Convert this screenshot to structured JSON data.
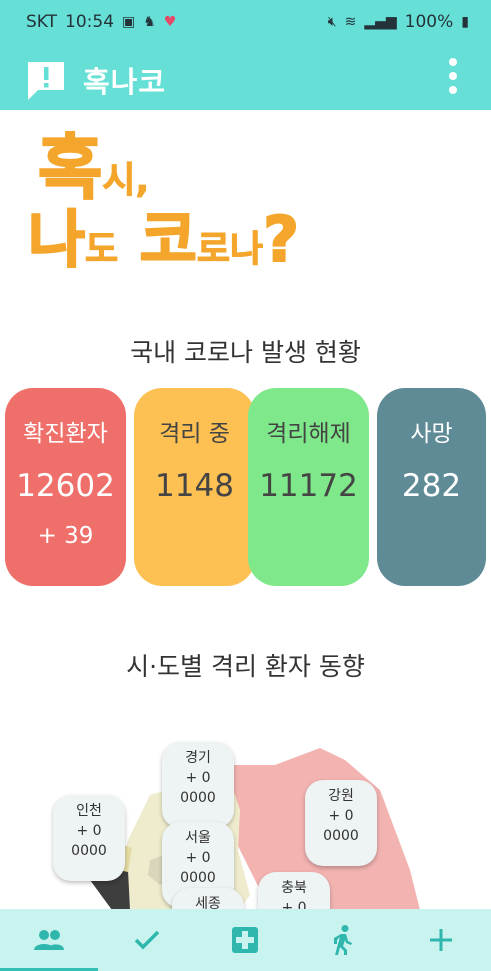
{
  "status": {
    "carrier": "SKT",
    "time": "10:54",
    "battery": "100%"
  },
  "app": {
    "title": "혹나코"
  },
  "hero": {
    "line1_big": "혹",
    "line1_small": "시,",
    "line2_big1": "나",
    "line2_small1": "도",
    "line2_big2": "코",
    "line2_small2": "로나",
    "line2_q": "?"
  },
  "domestic": {
    "title": "국내 코로나 발생 현황",
    "cards": [
      {
        "label": "확진환자",
        "value": "12602",
        "delta": "+ 39",
        "color": "#ef6f6a"
      },
      {
        "label": "격리 중",
        "value": "1148",
        "color": "#fdc052"
      },
      {
        "label": "격리해제",
        "value": "11172",
        "color": "#7ee88a"
      },
      {
        "label": "사망",
        "value": "282",
        "color": "#5e8b96"
      }
    ]
  },
  "regional": {
    "title": "시·도별 격리 환자 동향",
    "regions": [
      {
        "name": "경기",
        "delta": "+ 0",
        "count": "0000"
      },
      {
        "name": "인천",
        "delta": "+ 0",
        "count": "0000"
      },
      {
        "name": "강원",
        "delta": "+ 0",
        "count": "0000"
      },
      {
        "name": "서울",
        "delta": "+ 0",
        "count": "0000"
      },
      {
        "name": "충북",
        "delta": "+ 0",
        "count": ""
      },
      {
        "name": "세종",
        "delta": "",
        "count": ""
      }
    ]
  },
  "nav": {
    "items": [
      "people-icon",
      "check-icon",
      "medical-cross-icon",
      "walking-icon",
      "plus-icon"
    ],
    "active": 0
  },
  "colors": {
    "accent": "#66e0d6",
    "hero_orange": "#f4a52b",
    "nav_bg": "#c9f3ee"
  }
}
